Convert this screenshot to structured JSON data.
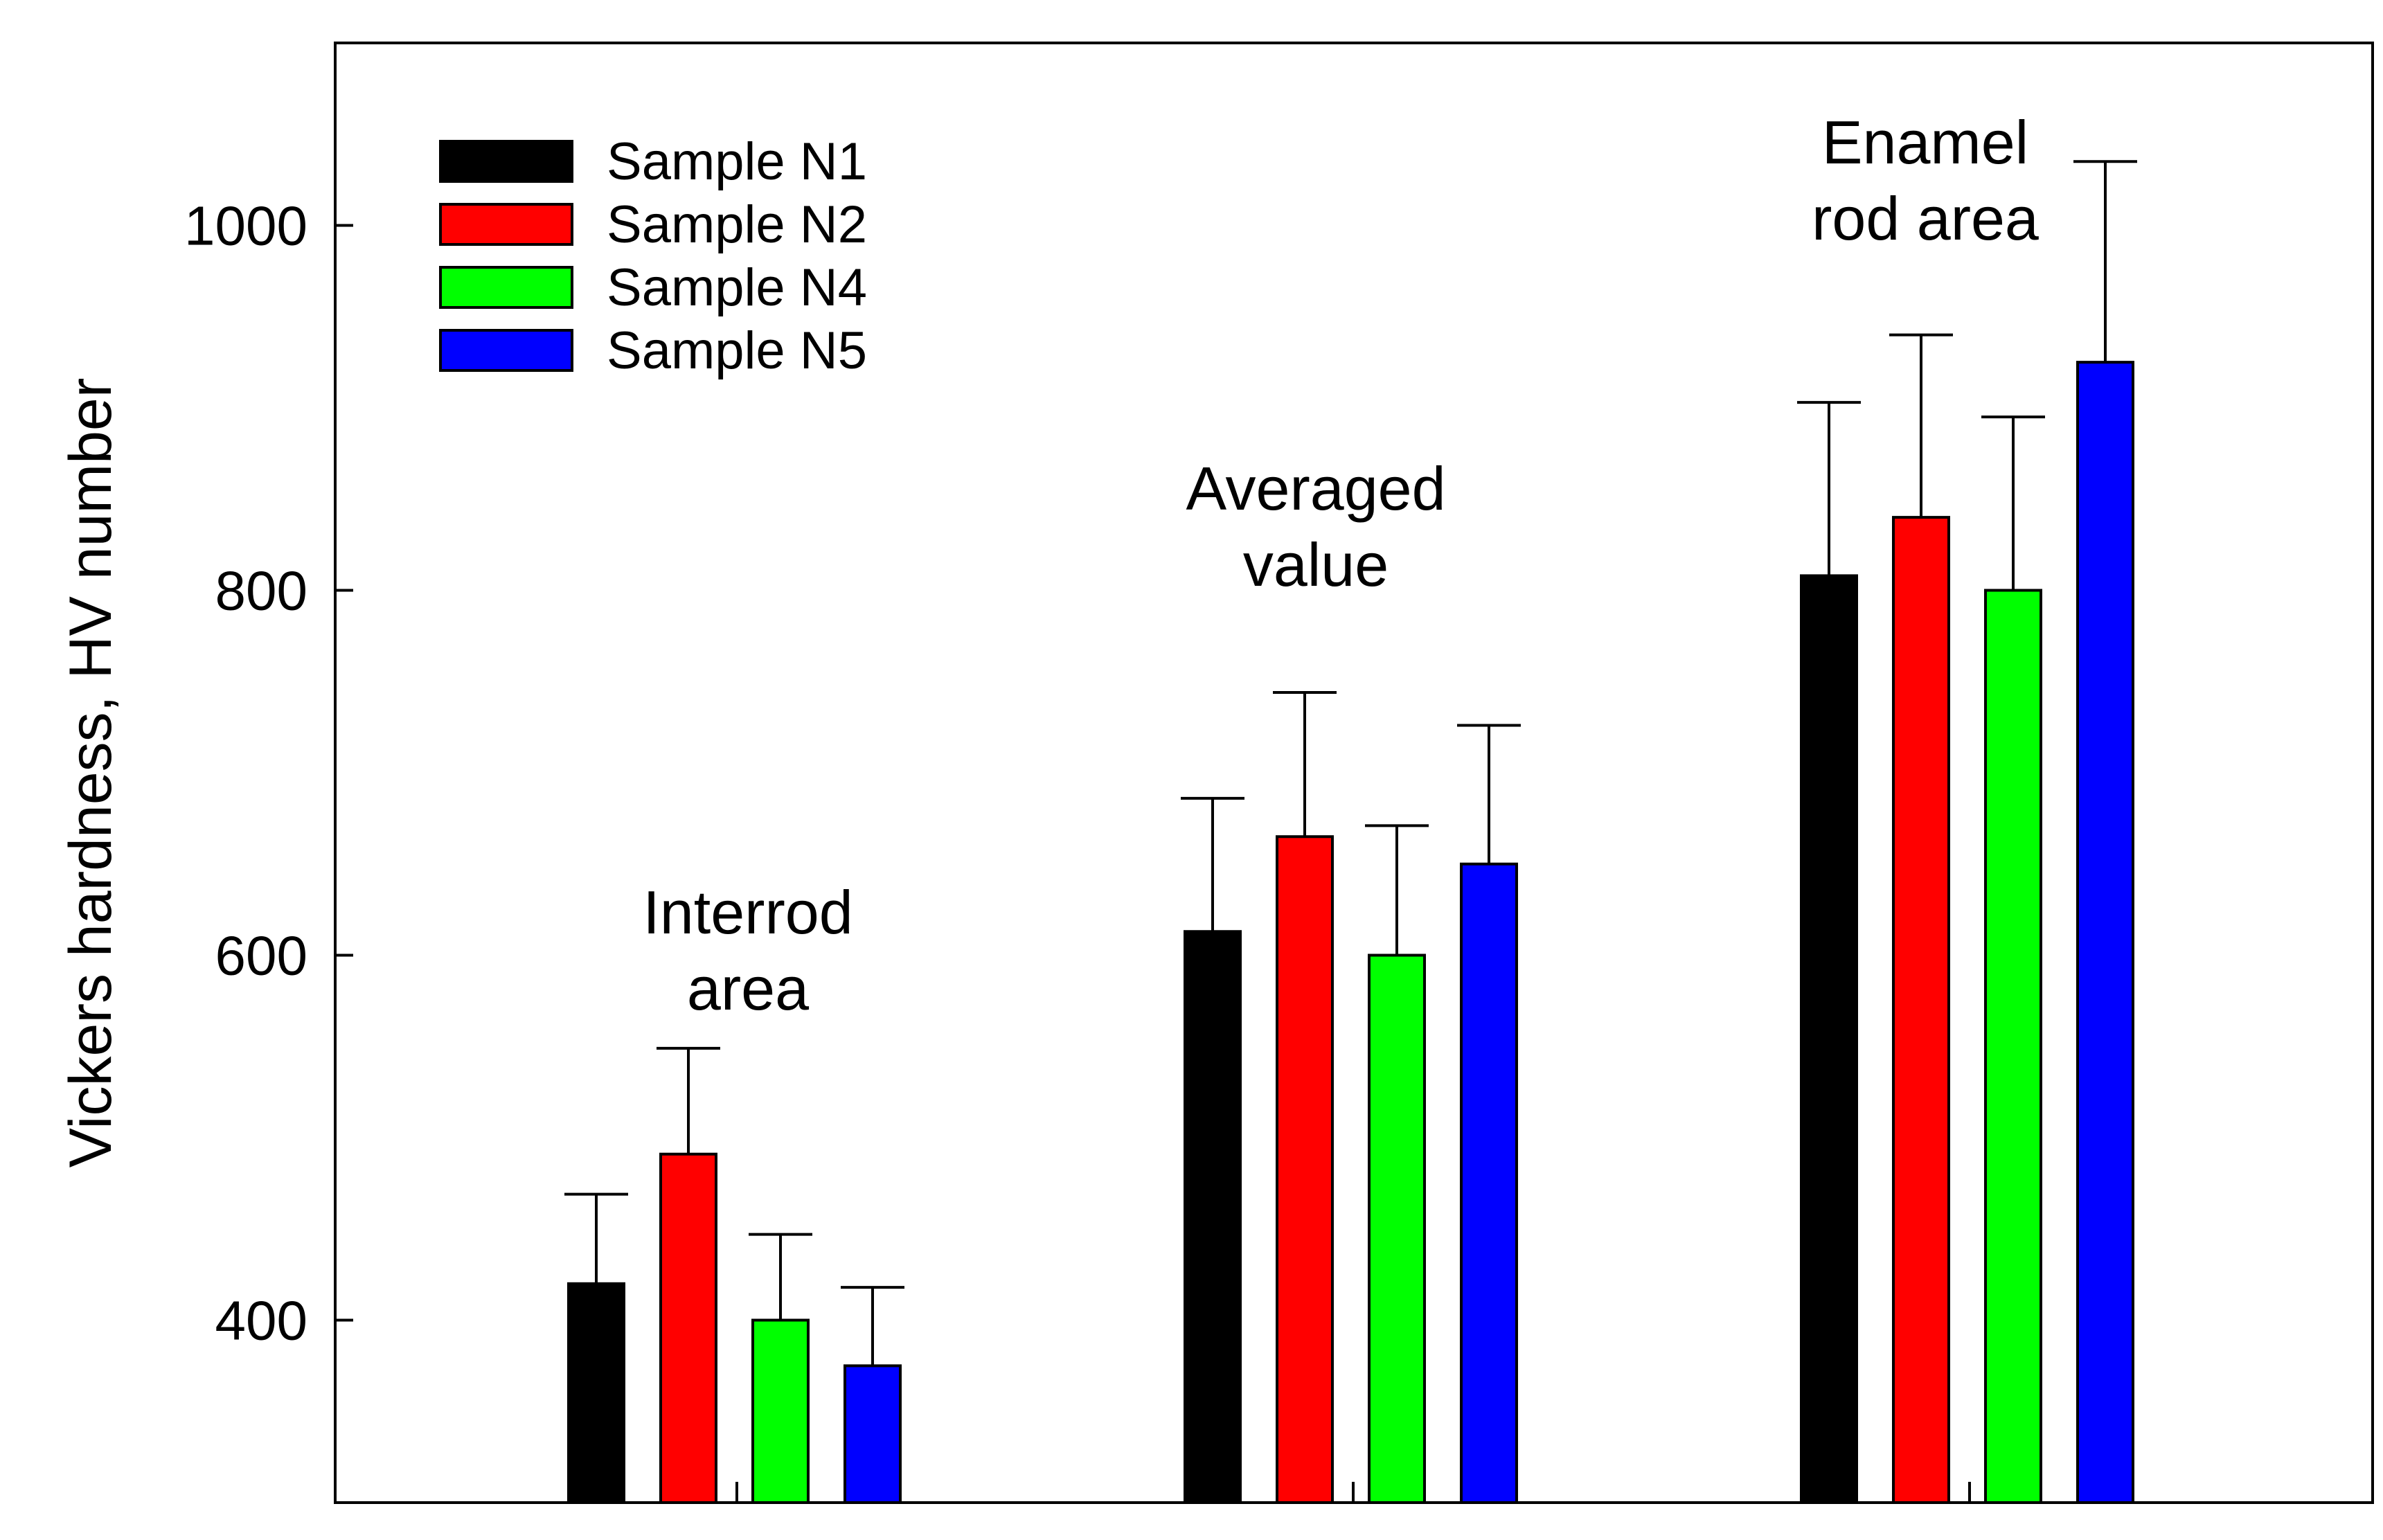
{
  "chart_data": {
    "type": "bar",
    "title": "",
    "xlabel": "",
    "ylabel": "Vickers hardness, HV number",
    "ylim": [
      300,
      1100
    ],
    "yticks": [
      400,
      600,
      800,
      1000
    ],
    "grid": false,
    "legend_position": "top-left",
    "categories": [
      "Interrod area",
      "Averaged value",
      "Enamel rod area"
    ],
    "category_annotations": [
      [
        "Interrod",
        "area"
      ],
      [
        "Averaged",
        "value"
      ],
      [
        "Enamel",
        "rod area"
      ]
    ],
    "series": [
      {
        "name": "Sample N1",
        "color": "#000000",
        "values": [
          420,
          613,
          808
        ],
        "errors": [
          49,
          73,
          95
        ]
      },
      {
        "name": "Sample N2",
        "color": "#ff0000",
        "values": [
          491,
          665,
          840
        ],
        "errors": [
          58,
          79,
          100
        ]
      },
      {
        "name": "Sample N4",
        "color": "#00ff00",
        "values": [
          400,
          600,
          800
        ],
        "errors": [
          47,
          71,
          95
        ]
      },
      {
        "name": "Sample N5",
        "color": "#0000ff",
        "values": [
          375,
          650,
          925
        ],
        "errors": [
          43,
          76,
          110
        ]
      }
    ]
  }
}
